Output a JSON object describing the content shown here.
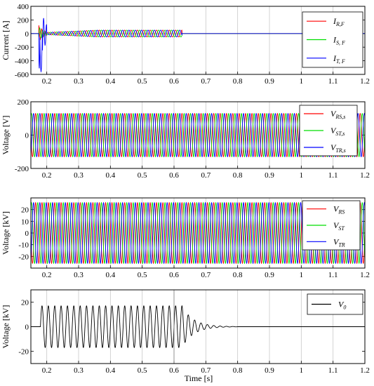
{
  "figure": {
    "xlabel": "Time [s]"
  },
  "chart_data": [
    {
      "type": "line",
      "ylabel": "Current [A]",
      "xlim": [
        0.15,
        1.2
      ],
      "ylim": [
        -600,
        400
      ],
      "xticks": [
        "0.2",
        "0.3",
        "0.4",
        "0.5",
        "0.6",
        "0.7",
        "0.8",
        "0.9",
        "1",
        "1.1",
        "1.2"
      ],
      "yticks": [
        "400",
        "200",
        "0",
        "-200",
        "-400",
        "-600"
      ],
      "ytick_values": [
        400,
        200,
        0,
        -200,
        -400,
        -600
      ],
      "grid": "vertical",
      "legend_position": "top-right",
      "series": [
        {
          "main": "I",
          "sub": "R,F",
          "color": "#ff0000"
        },
        {
          "main": "I",
          "sub": "S, F",
          "color": "#00dd00"
        },
        {
          "main": "I",
          "sub": "T, F",
          "color": "#0000ff"
        }
      ],
      "signal": {
        "fault_start": 0.18,
        "fault_end": 0.625,
        "steady_amplitude": 50,
        "initial_spike": -600,
        "frequency_hz": 50
      }
    },
    {
      "type": "line",
      "ylabel": "Voltage [V]",
      "xlim": [
        0.15,
        1.2
      ],
      "ylim": [
        -200,
        200
      ],
      "xticks": [
        "0.2",
        "0.3",
        "0.4",
        "0.5",
        "0.6",
        "0.7",
        "0.8",
        "0.9",
        "1",
        "1.1",
        "1.2"
      ],
      "yticks": [
        "200",
        "0",
        "-200"
      ],
      "ytick_values": [
        200,
        0,
        -200
      ],
      "grid": "vertical",
      "legend_position": "top-right",
      "series": [
        {
          "main": "V",
          "sub": "RS,s",
          "color": "#ff0000"
        },
        {
          "main": "V",
          "sub": "ST,s",
          "color": "#00dd00"
        },
        {
          "main": "V",
          "sub": "TR,s",
          "color": "#0000ff"
        }
      ],
      "signal": {
        "amplitude": 130,
        "frequency_hz": 50
      }
    },
    {
      "type": "line",
      "ylabel": "Voltage [kV]",
      "xlim": [
        0.15,
        1.2
      ],
      "ylim": [
        -30,
        30
      ],
      "xticks": [
        "0.2",
        "0.3",
        "0.4",
        "0.5",
        "0.6",
        "0.7",
        "0.8",
        "0.9",
        "1",
        "1.1",
        "1.2"
      ],
      "yticks": [
        "20",
        "10",
        "0",
        "-10",
        "-20"
      ],
      "ytick_values": [
        20,
        10,
        0,
        -10,
        -20
      ],
      "grid": "vertical",
      "legend_position": "top-right",
      "series": [
        {
          "main": "V",
          "sub": "RS",
          "color": "#ff0000"
        },
        {
          "main": "V",
          "sub": "ST",
          "color": "#00dd00"
        },
        {
          "main": "V",
          "sub": "TR",
          "color": "#0000ff"
        }
      ],
      "signal": {
        "amplitude": 26,
        "frequency_hz": 50
      }
    },
    {
      "type": "line",
      "ylabel": "Voltage [kV]",
      "xlim": [
        0.15,
        1.2
      ],
      "ylim": [
        -30,
        30
      ],
      "xticks": [
        "0.2",
        "0.3",
        "0.4",
        "0.5",
        "0.6",
        "0.7",
        "0.8",
        "0.9",
        "1",
        "1.1",
        "1.2"
      ],
      "yticks": [
        "20",
        "0",
        "-20"
      ],
      "ytick_values": [
        20,
        0,
        -20
      ],
      "grid": "vertical",
      "legend_position": "top-right",
      "series": [
        {
          "main": "V",
          "sub": "0",
          "color": "#000000"
        }
      ],
      "signal": {
        "fault_start": 0.18,
        "fault_end": 0.625,
        "amplitude": 17,
        "decay_end": 0.8,
        "frequency_hz": 50
      }
    }
  ]
}
